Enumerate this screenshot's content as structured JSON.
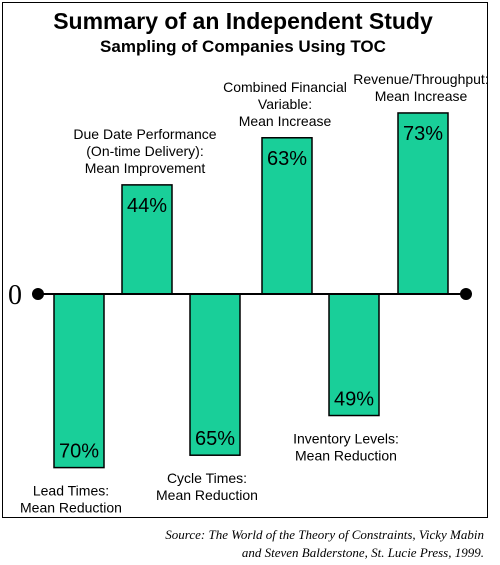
{
  "chart_data": {
    "type": "bar",
    "title": "Summary of an Independent Study",
    "subtitle": "Sampling of Companies Using TOC",
    "baseline_label": "0",
    "accent_color": "#19CF99",
    "bars": [
      {
        "value": -70,
        "value_label": "70%",
        "label_lines": [
          "Lead Times:",
          "Mean Reduction"
        ],
        "label_position": "below"
      },
      {
        "value": 44,
        "value_label": "44%",
        "label_lines": [
          "Due Date Performance",
          "(On-time Delivery):",
          "Mean Improvement"
        ],
        "label_position": "above"
      },
      {
        "value": -65,
        "value_label": "65%",
        "label_lines": [
          "Cycle Times:",
          "Mean Reduction"
        ],
        "label_position": "below"
      },
      {
        "value": 63,
        "value_label": "63%",
        "label_lines": [
          "Combined Financial",
          "Variable:",
          "Mean Increase"
        ],
        "label_position": "above"
      },
      {
        "value": -49,
        "value_label": "49%",
        "label_lines": [
          "Inventory Levels:",
          "Mean Reduction"
        ],
        "label_position": "below"
      },
      {
        "value": 73,
        "value_label": "73%",
        "label_lines": [
          "Revenue/Throughput:",
          "Mean Increase"
        ],
        "label_position": "above"
      }
    ]
  },
  "source": {
    "line1": "Source:  The World of the Theory of Constraints, Vicky Mabin",
    "line2": "and Steven Balderstone, St. Lucie Press, 1999."
  }
}
